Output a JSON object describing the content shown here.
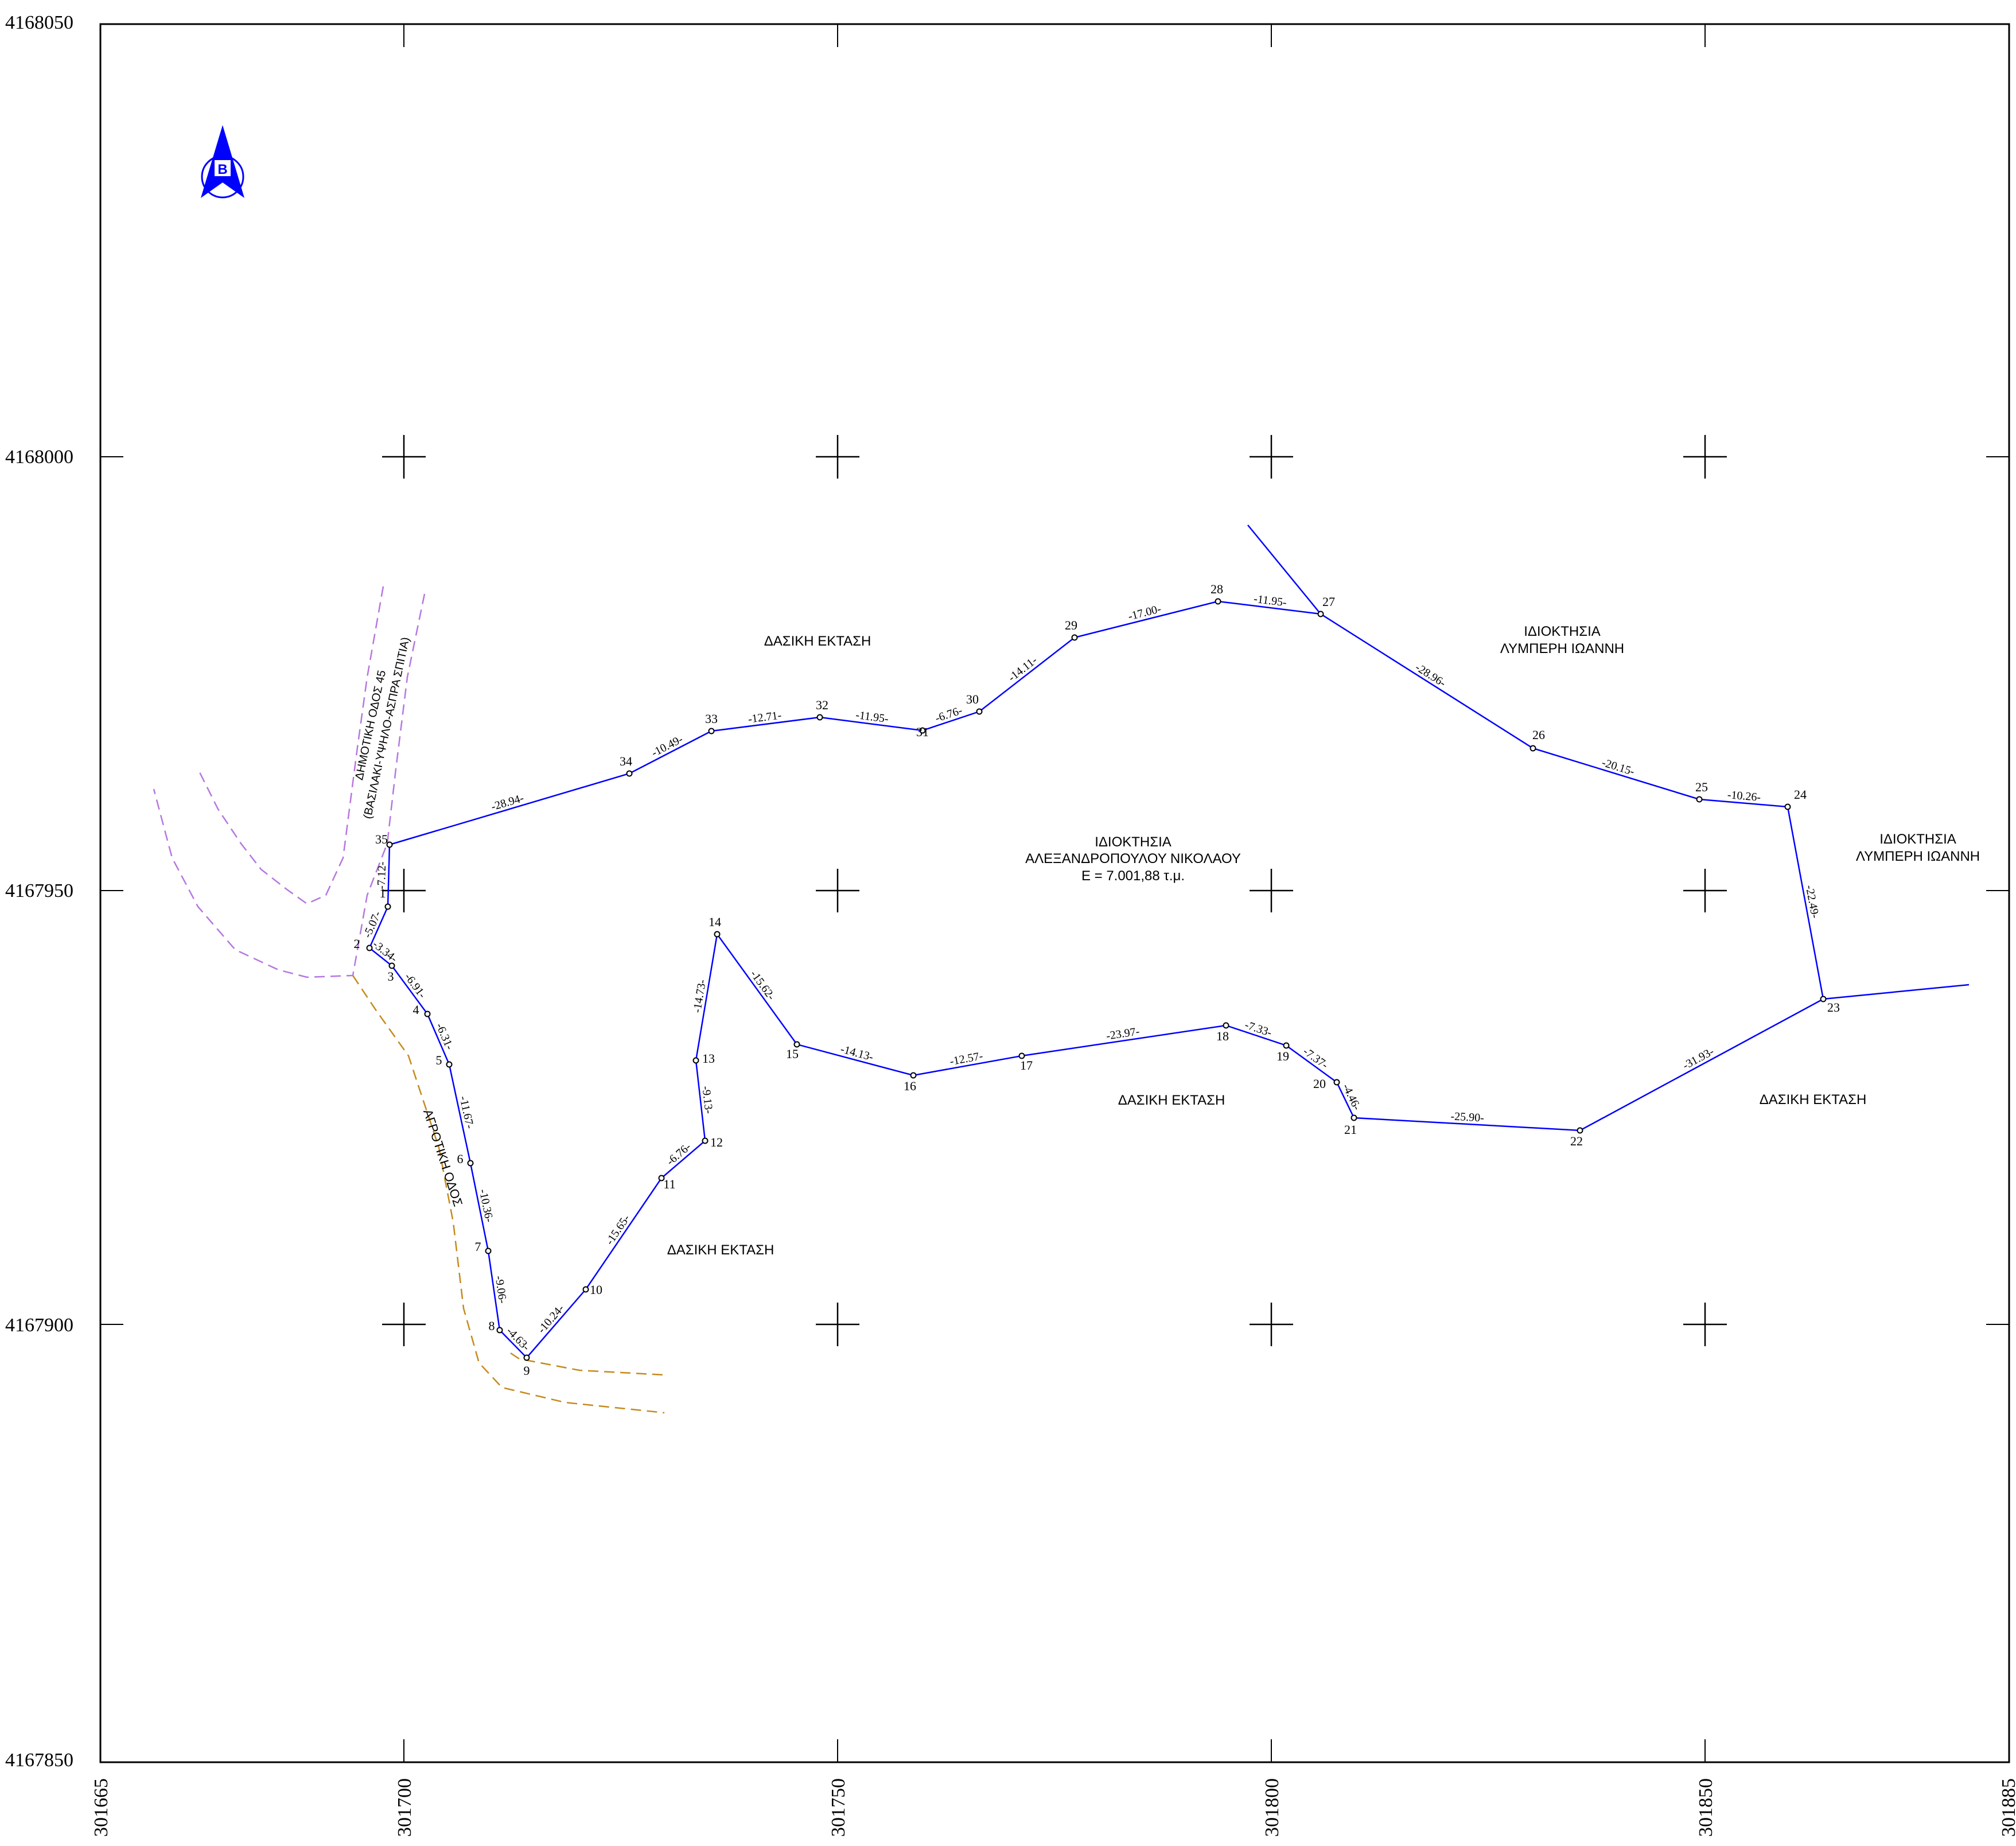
{
  "axes": {
    "y_ticks": [
      "4168050",
      "4168000",
      "4167950",
      "4167900",
      "4167850"
    ],
    "x_ticks": [
      "301665",
      "301700",
      "301750",
      "301800",
      "301850",
      "301885"
    ]
  },
  "north_arrow": {
    "letter": "Β",
    "icon": "north-arrow-icon",
    "color": "#0000ff"
  },
  "parcel": {
    "color": "#0000ff",
    "title_line1": "ΙΔΙΟΚΤΗΣΙΑ",
    "title_line2": "ΑΛΕΞΑΝΔΡΟΠΟΥΛΟΥ ΝΙΚΟΛΑΟΥ",
    "area": "Ε = 7.001,88 τ.μ.",
    "vertices": [
      "1",
      "2",
      "3",
      "4",
      "5",
      "6",
      "7",
      "8",
      "9",
      "10",
      "11",
      "12",
      "13",
      "14",
      "15",
      "16",
      "17",
      "18",
      "19",
      "20",
      "21",
      "22",
      "23",
      "24",
      "25",
      "26",
      "27",
      "28",
      "29",
      "30",
      "31",
      "32",
      "33",
      "34",
      "35"
    ],
    "edge_lengths": [
      "-5.07-",
      "-3.34-",
      "-6.91-",
      "-6.31-",
      "-11.67-",
      "-10.36-",
      "-9.06-",
      "-4.63-",
      "-10.24-",
      "-15.65-",
      "-6.76-",
      "-9.13-",
      "-14.73-",
      "-15.62-",
      "-14.13-",
      "-12.57-",
      "-23.97-",
      "-7.33-",
      "-7.37-",
      "-4.46-",
      "-25.90-",
      "-31.93-",
      "-22.49-",
      "-10.26-",
      "-20.15-",
      "-28.96-",
      "-11.95-",
      "-17.00-",
      "-14.11-",
      "-6.76-",
      "-11.95-",
      "-12.71-",
      "-10.49-",
      "-28.94-",
      "-7.12-"
    ]
  },
  "labels": {
    "forest_north": "ΔΑΣΙΚΗ ΕΚΤΑΣΗ",
    "forest_south": "ΔΑΣΙΚΗ ΕΚΤΑΣΗ",
    "forest_southwest": "ΔΑΣΙΚΗ ΕΚΤΑΣΗ",
    "forest_southeast": "ΔΑΣΙΚΗ ΕΚΤΑΣΗ",
    "owner_ne_line1": "ΙΔΙΟΚΤΗΣΙΑ",
    "owner_ne_line2": "ΛΥΜΠΕΡΗ ΙΩΑΝΝΗ",
    "owner_e_line1": "ΙΔΙΟΚΤΗΣΙΑ",
    "owner_e_line2": "ΛΥΜΠΕΡΗ ΙΩΑΝΝΗ",
    "municipal_road_line1": "ΔΗΜΟΤΙΚΗ ΟΔΟΣ 45",
    "municipal_road_line2": "(ΒΑΣΙΛΑΚΙ-ΥΨΗΛΟ-ΑΣΠΡΑ ΣΠΙΤΙΑ)",
    "rural_road": "ΑΓΡΟΤΙΚΗ ΟΔΟΣ"
  },
  "colors": {
    "municipal_road": "#b577e0",
    "rural_road": "#c58a1c",
    "frame": "#000000"
  }
}
